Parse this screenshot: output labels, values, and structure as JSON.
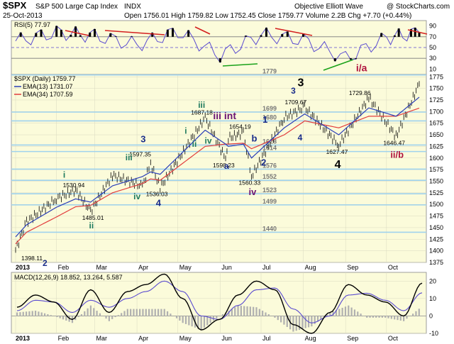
{
  "header": {
    "symbol": "$SPX",
    "name": "S&P 500 Large Cap Index",
    "exchange": "INDX",
    "date": "25-Oct-2013",
    "ohlc": "Open 1756.01  High 1759.82  Low 1752.45  Close 1759.77  Volume 2.2B  Chg +7.70 (+0.44%)",
    "brand": "Objective Elliott Wave",
    "watermark": "@ StockCharts.com"
  },
  "colors": {
    "plot_bg": "#fbfbda",
    "price_line": "#000000",
    "ema13": "#2a3eb8",
    "ema34": "#e23d3d",
    "rsi": "#5a4bd0",
    "macd": "#000000",
    "signal": "#5a4bd0",
    "hist": "#b0b0b0",
    "hline": "#9fd2ee",
    "red_label": "#b0143e",
    "green_label": "#1f7a5e",
    "navy_label": "#1a2d8a",
    "purple_label": "#6b1474"
  },
  "chart_data": [
    {
      "type": "line",
      "panel": "RSI",
      "title": "RSI(5) 77.97",
      "x": [
        "2013-01-02",
        "2013-02-01",
        "2013-03-01",
        "2013-04-01",
        "2013-05-01",
        "2013-06-01",
        "2013-07-01",
        "2013-08-01",
        "2013-09-01",
        "2013-10-01",
        "2013-10-25"
      ],
      "values": [
        62,
        78,
        72,
        55,
        80,
        35,
        74,
        64,
        30,
        68,
        78
      ],
      "ylim": [
        0,
        100
      ],
      "yticks": [
        10,
        30,
        50,
        70,
        90
      ],
      "levels": [
        30,
        50,
        70
      ]
    },
    {
      "type": "line",
      "panel": "Price",
      "title": "$SPX (Daily) 1759.77",
      "legend": [
        "EMA(13) 1731.07",
        "EMA(34) 1707.59"
      ],
      "x": [
        "2013-01-02",
        "2013-01-10",
        "2013-02-01",
        "2013-02-15",
        "2013-02-26",
        "2013-03-14",
        "2013-04-05",
        "2013-04-11",
        "2013-04-18",
        "2013-05-21",
        "2013-06-05",
        "2013-06-07",
        "2013-06-18",
        "2013-06-24",
        "2013-07-18",
        "2013-08-02",
        "2013-08-27",
        "2013-09-18",
        "2013-10-08",
        "2013-10-25"
      ],
      "series": [
        {
          "name": "$SPX (Daily)",
          "values": [
            1402,
            1462,
            1513,
            1530.94,
            1485.01,
            1563,
            1539,
            1588,
            1536.03,
            1687.18,
            1598.23,
            1643,
            1654.19,
            1560.33,
            1687,
            1709.67,
            1627.47,
            1729.86,
            1646.47,
            1759.77
          ]
        },
        {
          "name": "EMA(13)",
          "values": [
            1430,
            1456,
            1494,
            1512,
            1505,
            1540,
            1560,
            1570,
            1565,
            1660,
            1630,
            1625,
            1630,
            1600,
            1665,
            1695,
            1650,
            1708,
            1690,
            1731.07
          ]
        },
        {
          "name": "EMA(34)",
          "values": [
            1415,
            1440,
            1473,
            1495,
            1498,
            1525,
            1545,
            1555,
            1552,
            1625,
            1630,
            1630,
            1632,
            1620,
            1650,
            1680,
            1665,
            1690,
            1690,
            1707.59
          ]
        }
      ],
      "ylim": [
        1375,
        1780
      ],
      "yticks": [
        1375,
        1400,
        1425,
        1450,
        1475,
        1500,
        1525,
        1550,
        1575,
        1600,
        1625,
        1650,
        1675,
        1700,
        1725,
        1750,
        1775
      ],
      "xticks": [
        "2013",
        "Feb",
        "Mar",
        "Apr",
        "May",
        "Jun",
        "Jul",
        "Aug",
        "Sep",
        "Oct"
      ],
      "hlines": [
        1779,
        1699,
        1680,
        1628,
        1614,
        1576,
        1552,
        1523,
        1499,
        1440
      ],
      "hline_labels": [
        "1779",
        "1699",
        "1680",
        "1628",
        "1614",
        "1576",
        "1552",
        "1523",
        "1499",
        "1440"
      ],
      "price_labels": [
        "1398.11",
        "1530.94",
        "1485.01",
        "1597.35",
        "1536.03",
        "1687.18",
        "1598.23",
        "1654.19",
        "1560.33",
        "1709.67",
        "1627.47",
        "1729.86",
        "1646.47"
      ],
      "wave_labels": [
        {
          "text": "2",
          "color": "navy"
        },
        {
          "text": "i",
          "color": "green"
        },
        {
          "text": "ii",
          "color": "green"
        },
        {
          "text": "iii",
          "color": "green"
        },
        {
          "text": "iv",
          "color": "green"
        },
        {
          "text": "3",
          "color": "navy"
        },
        {
          "text": "4",
          "color": "navy"
        },
        {
          "text": "i",
          "color": "green"
        },
        {
          "text": "ii",
          "color": "green"
        },
        {
          "text": "iii",
          "color": "green"
        },
        {
          "text": "iv",
          "color": "green"
        },
        {
          "text": "iii int",
          "color": "purple"
        },
        {
          "text": "a",
          "color": "navy"
        },
        {
          "text": "b",
          "color": "navy"
        },
        {
          "text": "iv",
          "color": "purple"
        },
        {
          "text": "1",
          "color": "navy"
        },
        {
          "text": "2",
          "color": "navy"
        },
        {
          "text": "3",
          "color": "navy"
        },
        {
          "text": "4",
          "color": "navy"
        },
        {
          "text": "3",
          "color": "black"
        },
        {
          "text": "4",
          "color": "black"
        },
        {
          "text": "i/a",
          "color": "red"
        },
        {
          "text": "ii/b",
          "color": "red"
        }
      ]
    },
    {
      "type": "line",
      "panel": "MACD",
      "title": "MACD(12,26,9) 18.852, 13.264, 5.587",
      "series": [
        {
          "name": "MACD",
          "values": [
            5,
            12,
            8,
            -2,
            15,
            2,
            14,
            18,
            24,
            10,
            -8,
            -2,
            12,
            20,
            15,
            -5,
            -10,
            2,
            18,
            12,
            8,
            0,
            18.852
          ]
        },
        {
          "name": "Signal",
          "values": [
            3,
            9,
            8,
            2,
            9,
            5,
            10,
            14,
            20,
            14,
            0,
            -2,
            6,
            15,
            16,
            4,
            -4,
            0,
            12,
            13,
            9,
            3,
            13.264
          ]
        },
        {
          "name": "Histogram",
          "values": [
            2,
            3,
            0,
            -4,
            6,
            -3,
            4,
            4,
            4,
            -4,
            -8,
            0,
            6,
            5,
            -1,
            -9,
            -6,
            2,
            6,
            -1,
            -1,
            -3,
            5.587
          ]
        }
      ],
      "ylim": [
        -10,
        25
      ],
      "yticks": [
        -10,
        0,
        10,
        20
      ],
      "xticks": [
        "2013",
        "Feb",
        "Mar",
        "Apr",
        "May",
        "Jun",
        "Jul",
        "Aug",
        "Sep",
        "Oct"
      ]
    }
  ]
}
